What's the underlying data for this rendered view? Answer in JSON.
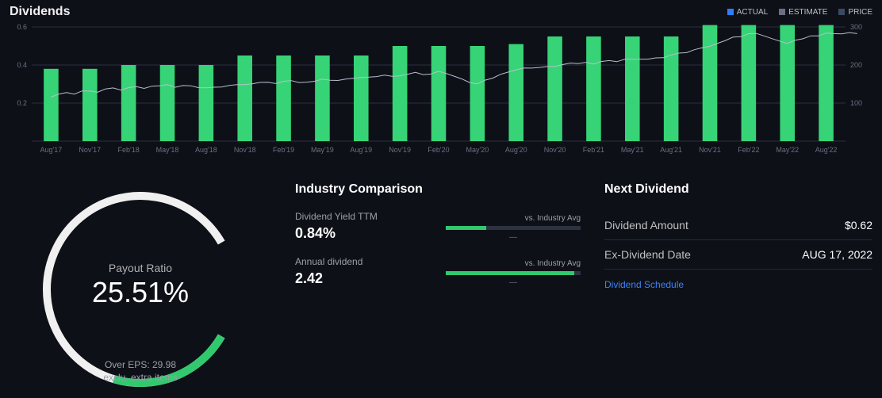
{
  "header": {
    "title": "Dividends",
    "legend": {
      "actual": {
        "label": "ACTUAL",
        "color": "#2d7ff9"
      },
      "estimate": {
        "label": "ESTIMATE",
        "color": "#6a7080"
      },
      "price": {
        "label": "PRICE",
        "color": "#3b4a63"
      }
    }
  },
  "chart": {
    "background": "#0e1018",
    "bar_color": "#36d476",
    "line_color": "#b7c0cd",
    "axis_color": "#2a3140",
    "text_color": "#6a7080",
    "left_axis": {
      "min": 0,
      "max": 0.6,
      "ticks": [
        0.2,
        0.4,
        0.6
      ]
    },
    "right_axis": {
      "min": 0,
      "max": 300,
      "ticks": [
        100,
        200,
        300
      ]
    },
    "categories": [
      "Aug'17",
      "Nov'17",
      "Feb'18",
      "May'18",
      "Aug'18",
      "Nov'18",
      "Feb'19",
      "May'19",
      "Aug'19",
      "Nov'19",
      "Feb'20",
      "May'20",
      "Aug'20",
      "Nov'20",
      "Feb'21",
      "May'21",
      "Aug'21",
      "Nov'21",
      "Feb'22",
      "May'22",
      "Aug'22"
    ],
    "bars": [
      0.38,
      0.38,
      0.4,
      0.4,
      0.4,
      0.45,
      0.45,
      0.45,
      0.45,
      0.5,
      0.5,
      0.5,
      0.51,
      0.55,
      0.55,
      0.55,
      0.55,
      0.61,
      0.61,
      0.61,
      0.61
    ],
    "line": [
      120,
      130,
      140,
      145,
      142,
      150,
      155,
      160,
      165,
      175,
      180,
      150,
      190,
      200,
      205,
      215,
      225,
      250,
      285,
      260,
      285
    ],
    "bar_width_ratio": 0.38
  },
  "gauge": {
    "label": "Payout Ratio",
    "value_text": "25.51%",
    "value": 0.2551,
    "sub1": "Over EPS: 29.98",
    "sub2": "exclu. extra items",
    "track_color": "#f0f0f0",
    "fill_color": "#30c96e",
    "bg_color": "#0e1018",
    "track_width": 10
  },
  "industry": {
    "title": "Industry Comparison",
    "vs_label": "vs. Industry Avg",
    "rows": [
      {
        "label": "Dividend Yield TTM",
        "value": "0.84%",
        "bar_pct": 30,
        "bar_color": "#30c96e",
        "track_color": "#2b3340"
      },
      {
        "label": "Annual dividend",
        "value": "2.42",
        "bar_pct": 95,
        "bar_color": "#30c96e",
        "track_color": "#2b3340"
      }
    ]
  },
  "next": {
    "title": "Next Dividend",
    "rows": [
      {
        "k": "Dividend Amount",
        "v": "$0.62"
      },
      {
        "k": "Ex-Dividend Date",
        "v": "AUG 17, 2022"
      }
    ],
    "link": "Dividend Schedule"
  }
}
